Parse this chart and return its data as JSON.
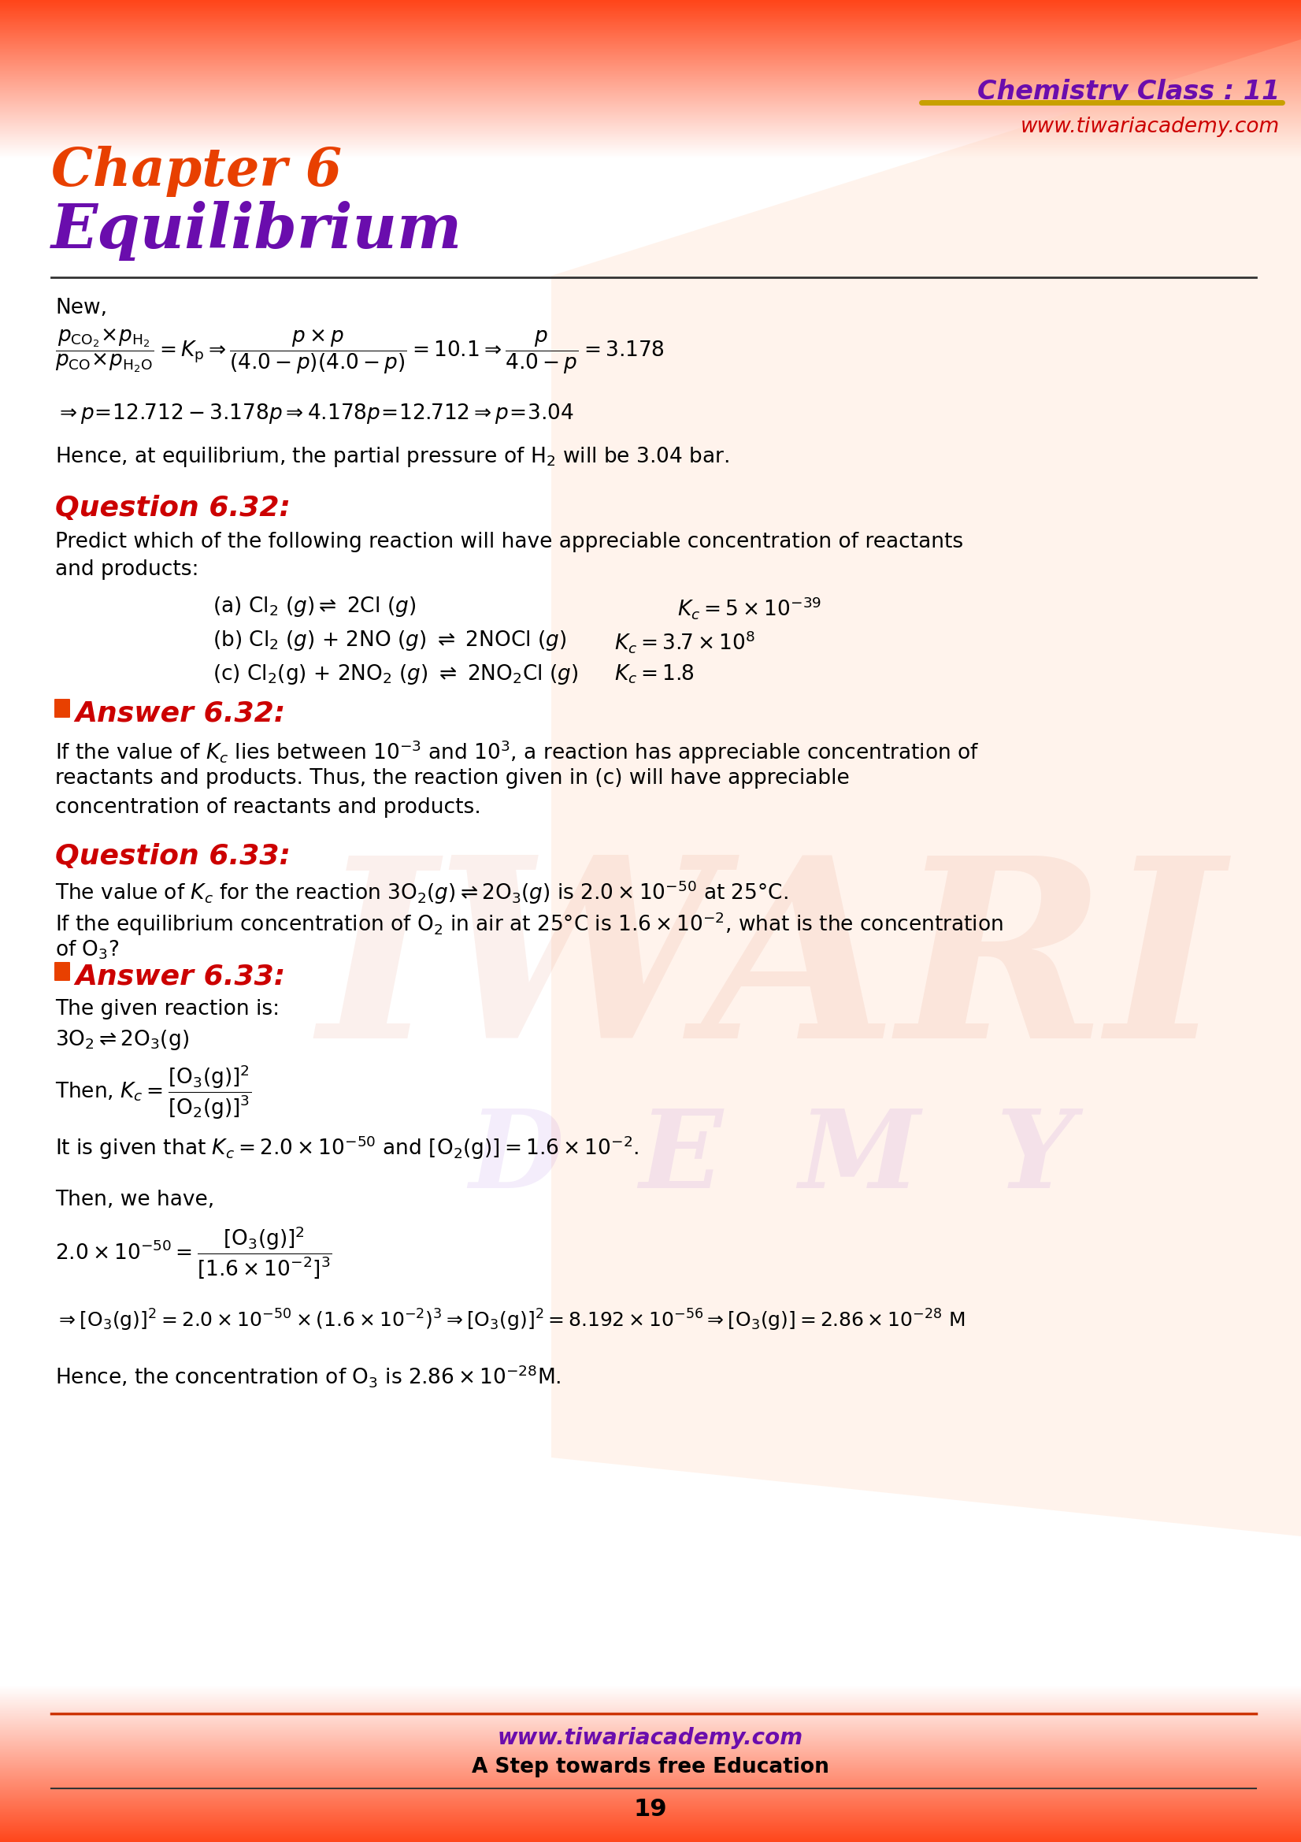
{
  "bg_color": "#ffffff",
  "chapter_color": "#e84000",
  "title_color": "#6a0dad",
  "question_color": "#cc0000",
  "answer_color": "#cc0000",
  "body_color": "#111111",
  "website_purple": "#6a0dad",
  "website_red": "#cc0000",
  "divider_color": "#333333",
  "header_purple": "#6a0dad",
  "header_red": "#cc0000",
  "gold_line": "#c8a000",
  "page_number": "19",
  "header_text1": "Chemistry Class : 11",
  "header_text2": "www.tiwariacademy.com",
  "chapter_line1": "Chapter 6",
  "chapter_line2": "Equilibrium",
  "footer_web": "www.tiwariacademy.com",
  "footer_tagline": "A Step towards free Education"
}
